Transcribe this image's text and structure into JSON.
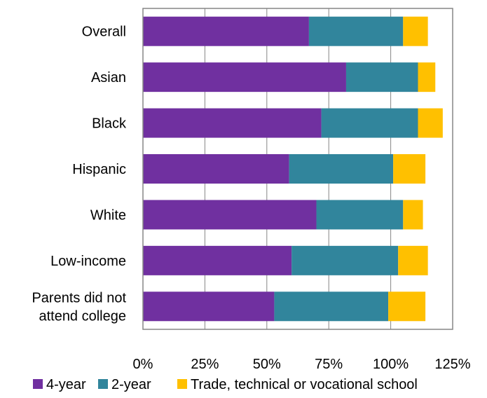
{
  "chart_data": {
    "type": "bar",
    "orientation": "horizontal",
    "stacked": true,
    "title": "",
    "xlabel": "",
    "ylabel": "",
    "categories": [
      "Overall",
      "Asian",
      "Black",
      "Hispanic",
      "White",
      "Low-income",
      "Parents did not attend college"
    ],
    "category_lines": [
      [
        "Overall"
      ],
      [
        "Asian"
      ],
      [
        "Black"
      ],
      [
        "Hispanic"
      ],
      [
        "White"
      ],
      [
        "Low-income"
      ],
      [
        "Parents did not",
        "attend college"
      ]
    ],
    "series": [
      {
        "name": "4-year",
        "color": "#7030a0",
        "values": [
          67,
          82,
          72,
          59,
          70,
          60,
          53
        ]
      },
      {
        "name": "2-year",
        "color": "#31859c",
        "values": [
          38,
          29,
          39,
          42,
          35,
          43,
          46
        ]
      },
      {
        "name": "Trade, technical or vocational school",
        "color": "#ffc000",
        "values": [
          10,
          7,
          10,
          13,
          8,
          12,
          15
        ]
      }
    ],
    "xlim": [
      0,
      125
    ],
    "xticks": [
      0,
      25,
      50,
      75,
      100,
      125
    ],
    "xtick_labels": [
      "0%",
      "25%",
      "50%",
      "75%",
      "100%",
      "125%"
    ],
    "grid": "vertical",
    "legend_position": "bottom"
  }
}
